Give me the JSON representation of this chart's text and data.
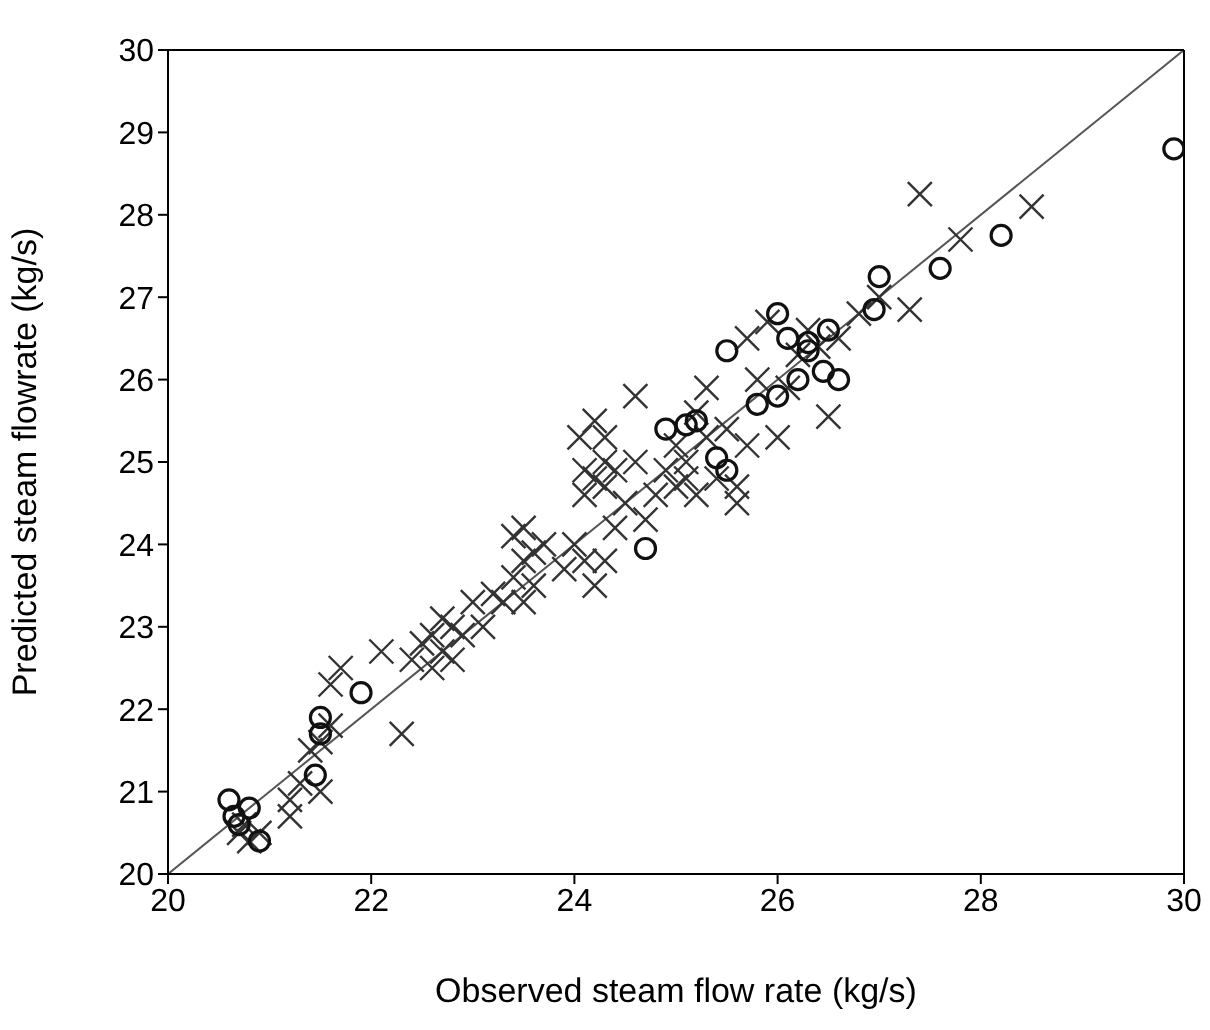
{
  "chart_data": {
    "type": "scatter",
    "xlabel": "Observed steam flow rate (kg/s)",
    "ylabel": "Predicted steam flowrate (kg/s)",
    "xlim": [
      20,
      30
    ],
    "xticks": [
      20,
      22,
      24,
      26,
      28,
      30
    ],
    "ylim": [
      20,
      30
    ],
    "yticks": [
      20,
      21,
      22,
      23,
      24,
      25,
      26,
      27,
      28,
      29,
      30
    ],
    "series": [
      {
        "marker": "cross",
        "color": "#333333",
        "x": [
          20.7,
          20.75,
          20.8,
          20.9,
          21.2,
          21.2,
          21.3,
          21.4,
          21.5,
          21.5,
          21.6,
          21.7,
          21.6,
          22.1,
          22.3,
          22.4,
          22.5,
          22.6,
          22.6,
          22.7,
          22.7,
          22.8,
          22.8,
          22.9,
          23.0,
          23.1,
          23.2,
          23.3,
          23.4,
          23.4,
          23.5,
          23.5,
          23.6,
          23.6,
          23.7,
          23.5,
          23.9,
          24.0,
          24.05,
          24.1,
          24.1,
          24.1,
          24.2,
          24.2,
          24.3,
          24.3,
          24.3,
          24.4,
          24.2,
          24.3,
          24.4,
          24.5,
          24.6,
          24.6,
          24.7,
          24.8,
          24.9,
          25.0,
          25.0,
          25.1,
          25.1,
          25.2,
          25.2,
          25.3,
          25.3,
          25.4,
          25.5,
          25.6,
          25.6,
          25.7,
          25.7,
          25.8,
          25.9,
          26.0,
          26.1,
          26.2,
          26.3,
          26.4,
          26.5,
          26.6,
          26.8,
          27.3,
          27.4,
          27.8,
          28.5,
          27.0
        ],
        "values": [
          20.5,
          20.6,
          20.4,
          20.5,
          20.9,
          20.7,
          21.1,
          21.5,
          21.6,
          21.0,
          22.3,
          22.5,
          21.8,
          22.7,
          21.7,
          22.6,
          22.8,
          22.5,
          22.9,
          22.7,
          23.1,
          22.6,
          23.0,
          22.9,
          23.3,
          23.0,
          23.4,
          23.3,
          23.6,
          24.1,
          24.2,
          23.8,
          23.5,
          23.9,
          24.0,
          23.3,
          23.7,
          24.0,
          25.3,
          23.8,
          24.6,
          24.9,
          25.5,
          24.8,
          24.7,
          25.0,
          25.3,
          24.9,
          23.5,
          23.8,
          24.2,
          24.5,
          25.0,
          25.8,
          24.3,
          24.6,
          24.9,
          24.7,
          25.2,
          24.8,
          25.0,
          24.6,
          25.6,
          25.3,
          25.9,
          24.8,
          25.4,
          24.5,
          24.7,
          25.2,
          26.5,
          26.0,
          26.7,
          25.3,
          25.9,
          26.3,
          26.6,
          26.4,
          25.55,
          26.5,
          26.8,
          26.85,
          28.25,
          27.7,
          28.1,
          27.0
        ]
      },
      {
        "marker": "circle",
        "color": "#111111",
        "x": [
          20.6,
          20.65,
          20.7,
          20.8,
          20.9,
          21.45,
          21.5,
          21.5,
          21.9,
          24.7,
          24.9,
          25.1,
          25.2,
          25.4,
          25.5,
          25.5,
          25.8,
          26.0,
          26.0,
          26.1,
          26.2,
          26.3,
          26.3,
          26.45,
          26.5,
          26.6,
          26.95,
          27.0,
          27.6,
          28.2,
          29.9
        ],
        "values": [
          20.9,
          20.7,
          20.6,
          20.8,
          20.4,
          21.2,
          21.7,
          21.9,
          22.2,
          23.95,
          25.4,
          25.45,
          25.5,
          25.05,
          24.9,
          26.35,
          25.7,
          26.8,
          25.8,
          26.5,
          26.0,
          26.35,
          26.45,
          26.1,
          26.6,
          26.0,
          26.85,
          27.25,
          27.35,
          27.75,
          28.8
        ]
      },
      {
        "type": "line",
        "marker": "none",
        "line_style": "solid",
        "color": "#555555",
        "x": [
          20,
          30
        ],
        "values": [
          20,
          30
        ]
      }
    ]
  }
}
